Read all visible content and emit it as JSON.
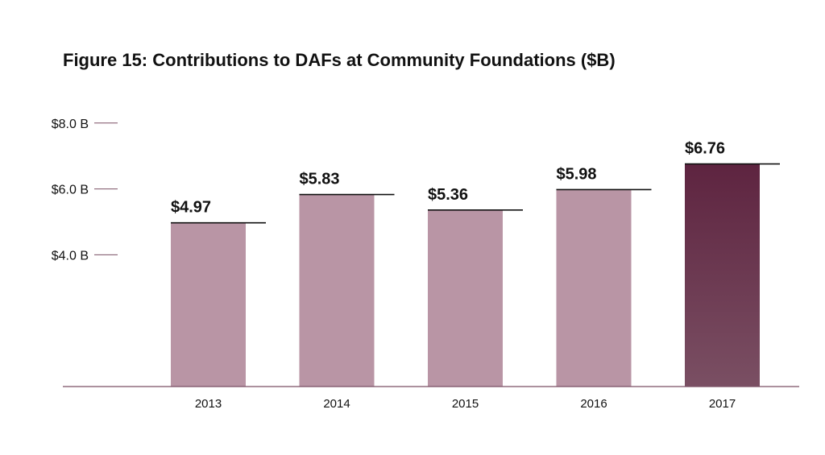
{
  "chart_data": {
    "type": "bar",
    "title": "Figure 15: Contributions to DAFs at Community Foundations ($B)",
    "xlabel": "",
    "ylabel": "",
    "categories": [
      "2013",
      "2014",
      "2015",
      "2016",
      "2017"
    ],
    "values": [
      4.97,
      5.83,
      5.36,
      5.98,
      6.76
    ],
    "value_labels": [
      "$4.97",
      "$5.83",
      "$5.36",
      "$5.98",
      "$6.76"
    ],
    "y_ticks": [
      4.0,
      6.0,
      8.0
    ],
    "y_tick_labels": [
      "$4.0 B",
      "$6.0 B",
      "$8.0 B"
    ],
    "ylim": [
      0,
      8.0
    ],
    "grid": false,
    "legend": "none",
    "colors": {
      "bar": "#b995a5",
      "highlight_bar_top": "#5e2440",
      "highlight_bar_bottom": "#7a4f63",
      "axis": "#7a4f63",
      "tick": "#7a4f63",
      "value_line": "#111111",
      "text": "#111111"
    },
    "highlight_index": 4
  }
}
